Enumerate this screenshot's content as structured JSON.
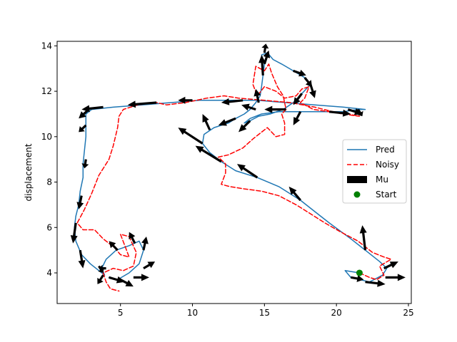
{
  "chart_data": {
    "type": "line",
    "title": "",
    "xlabel": "",
    "ylabel": "displacement",
    "xlim": [
      0.6,
      25.2
    ],
    "ylim": [
      2.65,
      14.2
    ],
    "xticks": [
      5,
      10,
      15,
      20,
      25
    ],
    "yticks": [
      4,
      6,
      8,
      10,
      12,
      14
    ],
    "grid": false,
    "legend": {
      "position": "center-right",
      "entries": [
        {
          "label": "Pred",
          "style": "line",
          "color": "#1f77b4"
        },
        {
          "label": "Noisy",
          "style": "dashed",
          "color": "#ff0000"
        },
        {
          "label": "Mu",
          "style": "arrow",
          "color": "#000000"
        },
        {
          "label": "Start",
          "style": "marker",
          "color": "#008000"
        }
      ]
    },
    "series": [
      {
        "name": "Pred",
        "color": "#1f77b4",
        "style": "solid",
        "points": [
          [
            21.6,
            4.0
          ],
          [
            20.6,
            4.1
          ],
          [
            21.0,
            3.8
          ],
          [
            22.3,
            3.6
          ],
          [
            23.2,
            3.9
          ],
          [
            23.5,
            4.2
          ],
          [
            23.0,
            4.5
          ],
          [
            22.0,
            5.0
          ],
          [
            21.0,
            5.5
          ],
          [
            19.5,
            6.2
          ],
          [
            18.5,
            6.7
          ],
          [
            17.5,
            7.2
          ],
          [
            16.0,
            7.8
          ],
          [
            14.5,
            8.2
          ],
          [
            13.0,
            8.5
          ],
          [
            12.0,
            8.9
          ],
          [
            11.2,
            9.3
          ],
          [
            10.7,
            9.7
          ],
          [
            10.8,
            10.1
          ],
          [
            11.5,
            10.4
          ],
          [
            12.5,
            10.6
          ],
          [
            13.0,
            10.8
          ],
          [
            13.6,
            11.0
          ],
          [
            14.0,
            11.2
          ],
          [
            14.4,
            11.5
          ],
          [
            14.7,
            11.8
          ],
          [
            14.8,
            12.2
          ],
          [
            14.9,
            12.7
          ],
          [
            15.0,
            13.2
          ],
          [
            14.8,
            13.6
          ],
          [
            15.2,
            13.7
          ],
          [
            15.6,
            13.4
          ],
          [
            16.2,
            13.2
          ],
          [
            17.0,
            12.9
          ],
          [
            17.8,
            12.6
          ],
          [
            18.2,
            12.3
          ],
          [
            17.6,
            11.9
          ],
          [
            17.0,
            11.5
          ],
          [
            16.3,
            11.2
          ],
          [
            15.4,
            11.0
          ],
          [
            14.6,
            10.9
          ],
          [
            14.0,
            10.7
          ],
          [
            13.6,
            10.6
          ],
          [
            14.0,
            10.8
          ],
          [
            14.8,
            11.0
          ],
          [
            16.0,
            11.1
          ],
          [
            17.5,
            11.1
          ],
          [
            19.0,
            11.1
          ],
          [
            20.5,
            11.1
          ],
          [
            21.5,
            11.2
          ],
          [
            22.0,
            11.2
          ],
          [
            20.5,
            11.3
          ],
          [
            18.5,
            11.4
          ],
          [
            16.5,
            11.5
          ],
          [
            14.5,
            11.6
          ],
          [
            12.5,
            11.6
          ],
          [
            10.5,
            11.6
          ],
          [
            8.5,
            11.5
          ],
          [
            6.5,
            11.4
          ],
          [
            4.5,
            11.3
          ],
          [
            3.0,
            11.2
          ],
          [
            2.6,
            11.0
          ],
          [
            2.6,
            10.5
          ],
          [
            2.6,
            10.0
          ],
          [
            2.5,
            9.4
          ],
          [
            2.4,
            8.8
          ],
          [
            2.4,
            8.2
          ],
          [
            2.2,
            7.6
          ],
          [
            2.1,
            7.0
          ],
          [
            1.9,
            6.5
          ],
          [
            1.8,
            6.0
          ],
          [
            1.9,
            5.4
          ],
          [
            2.3,
            4.8
          ],
          [
            2.9,
            4.4
          ],
          [
            3.5,
            4.1
          ],
          [
            3.9,
            3.9
          ],
          [
            3.7,
            4.2
          ],
          [
            4.0,
            4.6
          ],
          [
            4.7,
            5.0
          ],
          [
            5.6,
            5.2
          ],
          [
            6.3,
            5.4
          ],
          [
            6.6,
            5.0
          ],
          [
            6.3,
            4.4
          ],
          [
            5.6,
            4.0
          ],
          [
            4.8,
            3.7
          ],
          [
            4.2,
            3.8
          ]
        ]
      },
      {
        "name": "Noisy",
        "color": "#ff0000",
        "style": "dashed",
        "points": [
          [
            21.6,
            4.0
          ],
          [
            22.3,
            3.8
          ],
          [
            22.8,
            3.7
          ],
          [
            23.3,
            3.9
          ],
          [
            23.0,
            4.3
          ],
          [
            23.8,
            4.6
          ],
          [
            23.3,
            4.7
          ],
          [
            22.5,
            4.9
          ],
          [
            21.5,
            5.4
          ],
          [
            20.3,
            5.8
          ],
          [
            19.2,
            6.2
          ],
          [
            18.2,
            6.6
          ],
          [
            17.2,
            7.0
          ],
          [
            16.0,
            7.4
          ],
          [
            14.8,
            7.6
          ],
          [
            13.6,
            7.7
          ],
          [
            12.6,
            7.8
          ],
          [
            12.0,
            7.9
          ],
          [
            12.3,
            8.4
          ],
          [
            12.3,
            8.8
          ],
          [
            11.8,
            9.1
          ],
          [
            12.5,
            9.2
          ],
          [
            13.5,
            9.5
          ],
          [
            14.2,
            9.9
          ],
          [
            14.6,
            10.1
          ],
          [
            15.2,
            10.4
          ],
          [
            15.8,
            10.0
          ],
          [
            16.4,
            10.1
          ],
          [
            16.4,
            10.6
          ],
          [
            16.2,
            11.0
          ],
          [
            16.5,
            11.2
          ],
          [
            16.3,
            11.8
          ],
          [
            15.9,
            12.2
          ],
          [
            15.5,
            12.8
          ],
          [
            15.3,
            13.2
          ],
          [
            15.0,
            12.9
          ],
          [
            14.4,
            13.1
          ],
          [
            14.2,
            12.3
          ],
          [
            14.5,
            11.8
          ],
          [
            15.0,
            12.2
          ],
          [
            15.8,
            12.0
          ],
          [
            16.4,
            11.7
          ],
          [
            17.2,
            11.8
          ],
          [
            17.6,
            12.1
          ],
          [
            18.1,
            12.2
          ],
          [
            17.8,
            11.7
          ],
          [
            17.5,
            11.5
          ],
          [
            18.4,
            11.2
          ],
          [
            19.5,
            11.1
          ],
          [
            20.8,
            11.0
          ],
          [
            21.6,
            10.9
          ],
          [
            20.4,
            11.0
          ],
          [
            18.5,
            11.3
          ],
          [
            16.8,
            11.5
          ],
          [
            15.0,
            11.6
          ],
          [
            13.2,
            11.7
          ],
          [
            12.2,
            11.8
          ],
          [
            11.0,
            11.7
          ],
          [
            9.5,
            11.5
          ],
          [
            8.2,
            11.4
          ],
          [
            7.5,
            11.5
          ],
          [
            6.2,
            11.4
          ],
          [
            5.2,
            11.2
          ],
          [
            4.9,
            10.9
          ],
          [
            4.8,
            10.4
          ],
          [
            4.5,
            9.6
          ],
          [
            4.2,
            9.0
          ],
          [
            3.5,
            8.3
          ],
          [
            3.0,
            7.5
          ],
          [
            2.5,
            6.8
          ],
          [
            2.0,
            6.2
          ],
          [
            2.4,
            5.9
          ],
          [
            3.2,
            5.9
          ],
          [
            3.8,
            5.5
          ],
          [
            4.6,
            5.1
          ],
          [
            5.0,
            4.8
          ],
          [
            5.6,
            4.7
          ],
          [
            5.3,
            5.2
          ],
          [
            5.0,
            5.7
          ],
          [
            5.6,
            5.6
          ],
          [
            6.1,
            4.9
          ],
          [
            5.9,
            4.3
          ],
          [
            5.2,
            4.1
          ],
          [
            4.5,
            4.2
          ],
          [
            3.8,
            4.0
          ],
          [
            4.0,
            3.6
          ],
          [
            4.3,
            3.3
          ],
          [
            4.9,
            3.2
          ]
        ]
      }
    ],
    "start": {
      "label": "Start",
      "x": 21.6,
      "y": 4.0,
      "color": "#008000"
    },
    "mu_arrows": [
      [
        23.4,
        3.8,
        1.4,
        0.0
      ],
      [
        22.0,
        3.6,
        1.4,
        -0.1
      ],
      [
        21.0,
        3.8,
        0.9,
        -0.1
      ],
      [
        23.3,
        4.2,
        1.0,
        0.3
      ],
      [
        22.0,
        5.0,
        -0.2,
        1.1
      ],
      [
        17.5,
        7.2,
        -0.8,
        0.6
      ],
      [
        14.5,
        8.2,
        -1.4,
        0.6
      ],
      [
        12.0,
        8.9,
        -1.8,
        0.7
      ],
      [
        10.7,
        9.7,
        -1.7,
        0.7
      ],
      [
        11.2,
        10.3,
        -0.5,
        0.7
      ],
      [
        13.0,
        10.8,
        -1.2,
        -0.3
      ],
      [
        14.0,
        10.7,
        -0.8,
        -0.5
      ],
      [
        14.4,
        11.2,
        -1.0,
        0.2
      ],
      [
        14.6,
        11.5,
        -0.2,
        0.6
      ],
      [
        14.9,
        12.7,
        -0.1,
        0.9
      ],
      [
        15.0,
        13.2,
        0.3,
        0.6
      ],
      [
        15.0,
        13.7,
        0.1,
        0.4
      ],
      [
        17.0,
        12.9,
        0.9,
        -0.2
      ],
      [
        17.8,
        12.6,
        0.5,
        -0.4
      ],
      [
        18.2,
        12.3,
        0.3,
        -0.6
      ],
      [
        17.6,
        11.9,
        -0.6,
        -0.5
      ],
      [
        16.5,
        11.2,
        -1.5,
        0.0
      ],
      [
        17.5,
        11.1,
        -0.5,
        -0.6
      ],
      [
        19.5,
        11.1,
        1.5,
        -0.1
      ],
      [
        20.8,
        11.2,
        1.0,
        -0.2
      ],
      [
        21.5,
        11.2,
        0.3,
        -0.3
      ],
      [
        13.5,
        11.6,
        -1.5,
        -0.1
      ],
      [
        10.0,
        11.6,
        -1.0,
        0.0
      ],
      [
        7.5,
        11.5,
        -2.0,
        -0.1
      ],
      [
        3.8,
        11.3,
        -1.5,
        -0.1
      ],
      [
        2.8,
        11.2,
        -0.7,
        -0.4
      ],
      [
        2.6,
        10.5,
        -0.5,
        -0.3
      ],
      [
        2.6,
        9.0,
        -0.1,
        -0.4
      ],
      [
        2.3,
        7.4,
        -0.2,
        -0.6
      ],
      [
        1.9,
        6.2,
        -0.2,
        -0.9
      ],
      [
        2.2,
        5.0,
        0.2,
        -0.8
      ],
      [
        3.5,
        4.3,
        0.3,
        -0.3
      ],
      [
        3.8,
        3.9,
        -0.4,
        -0.4
      ],
      [
        4.2,
        3.8,
        1.1,
        -0.2
      ],
      [
        5.0,
        3.7,
        0.9,
        -0.3
      ],
      [
        5.9,
        3.8,
        1.1,
        0.0
      ],
      [
        6.6,
        4.2,
        0.8,
        0.3
      ],
      [
        6.6,
        5.0,
        0.2,
        0.6
      ],
      [
        6.0,
        5.3,
        -0.4,
        0.5
      ],
      [
        4.8,
        5.0,
        -0.6,
        0.4
      ],
      [
        4.0,
        4.2,
        -0.5,
        0.0
      ]
    ]
  }
}
